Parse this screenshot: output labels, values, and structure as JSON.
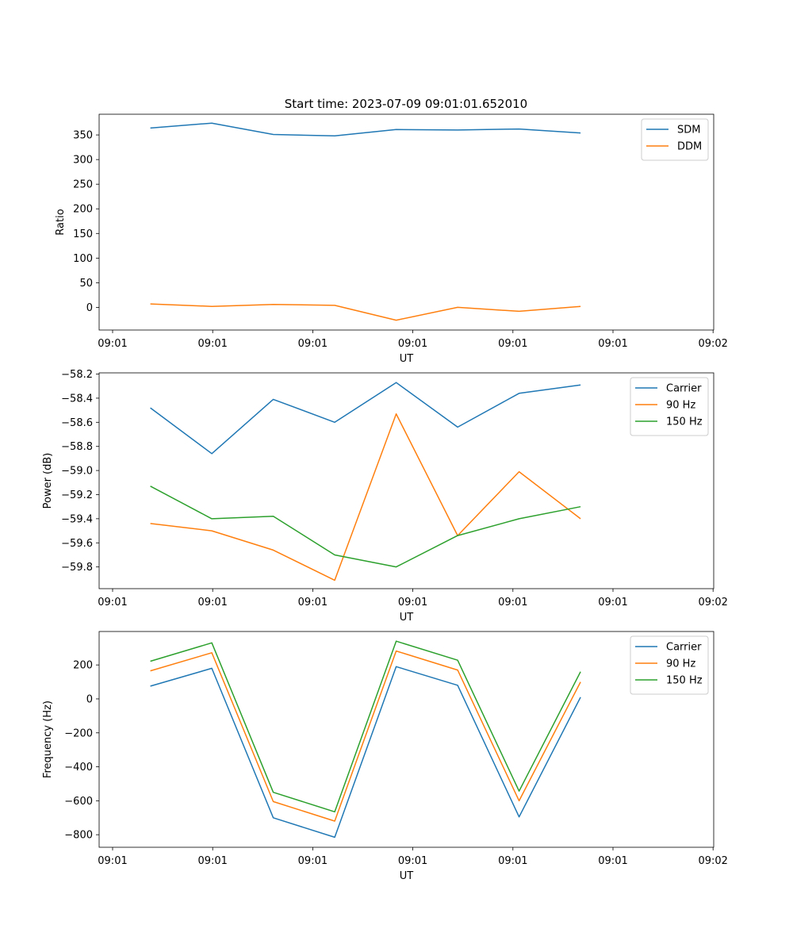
{
  "figure_title": "Start time: 2023-07-09 09:01:01.652010",
  "chart_data": [
    {
      "type": "line",
      "xlabel": "UT",
      "ylabel": "Ratio",
      "xlim": [
        0,
        6
      ],
      "x_ticks": [
        "09:01",
        "09:01",
        "09:01",
        "09:01",
        "09:01",
        "09:01",
        "09:02"
      ],
      "x": [
        0.5,
        1.1,
        1.7,
        2.3,
        2.9,
        3.5,
        4.1,
        4.7
      ],
      "ylim": [
        -46,
        392
      ],
      "y_ticks": [
        0,
        50,
        100,
        150,
        200,
        250,
        300,
        350
      ],
      "legend_position": "top-right",
      "series": [
        {
          "name": "SDM",
          "color": "#1f77b4",
          "values": [
            364,
            374,
            351,
            348,
            361,
            360,
            362,
            354
          ]
        },
        {
          "name": "DDM",
          "color": "#ff7f0e",
          "values": [
            7,
            2,
            6,
            4,
            -26,
            0,
            -8,
            2
          ]
        }
      ]
    },
    {
      "type": "line",
      "xlabel": "UT",
      "ylabel": "Power (dB)",
      "xlim": [
        0,
        6
      ],
      "x_ticks": [
        "09:01",
        "09:01",
        "09:01",
        "09:01",
        "09:01",
        "09:01",
        "09:02"
      ],
      "x": [
        0.5,
        1.1,
        1.7,
        2.3,
        2.9,
        3.5,
        4.1,
        4.7
      ],
      "ylim": [
        -59.98,
        -58.19
      ],
      "y_ticks": [
        -59.8,
        -59.6,
        -59.4,
        -59.2,
        -59.0,
        -58.8,
        -58.6,
        -58.4,
        -58.2
      ],
      "legend_position": "top-right",
      "series": [
        {
          "name": "Carrier",
          "color": "#1f77b4",
          "values": [
            -58.48,
            -58.86,
            -58.41,
            -58.6,
            -58.27,
            -58.64,
            -58.36,
            -58.29
          ]
        },
        {
          "name": "90 Hz",
          "color": "#ff7f0e",
          "values": [
            -59.44,
            -59.5,
            -59.66,
            -59.91,
            -58.53,
            -59.54,
            -59.01,
            -59.4
          ]
        },
        {
          "name": "150 Hz",
          "color": "#2ca02c",
          "values": [
            -59.13,
            -59.4,
            -59.38,
            -59.7,
            -59.8,
            -59.54,
            -59.4,
            -59.3
          ]
        }
      ]
    },
    {
      "type": "line",
      "xlabel": "UT",
      "ylabel": "Frequency (Hz)",
      "xlim": [
        0,
        6
      ],
      "x_ticks": [
        "09:01",
        "09:01",
        "09:01",
        "09:01",
        "09:01",
        "09:01",
        "09:02"
      ],
      "x": [
        0.5,
        1.1,
        1.7,
        2.3,
        2.9,
        3.5,
        4.1,
        4.7
      ],
      "ylim": [
        -874,
        397
      ],
      "y_ticks": [
        -800,
        -600,
        -400,
        -200,
        0,
        200
      ],
      "legend_position": "top-right",
      "series": [
        {
          "name": "Carrier",
          "color": "#1f77b4",
          "values": [
            75,
            180,
            -700,
            -815,
            190,
            80,
            -695,
            10
          ]
        },
        {
          "name": "90 Hz",
          "color": "#ff7f0e",
          "values": [
            165,
            272,
            -605,
            -720,
            282,
            170,
            -600,
            100
          ]
        },
        {
          "name": "150 Hz",
          "color": "#2ca02c",
          "values": [
            222,
            330,
            -550,
            -665,
            340,
            228,
            -543,
            160
          ]
        }
      ]
    }
  ]
}
